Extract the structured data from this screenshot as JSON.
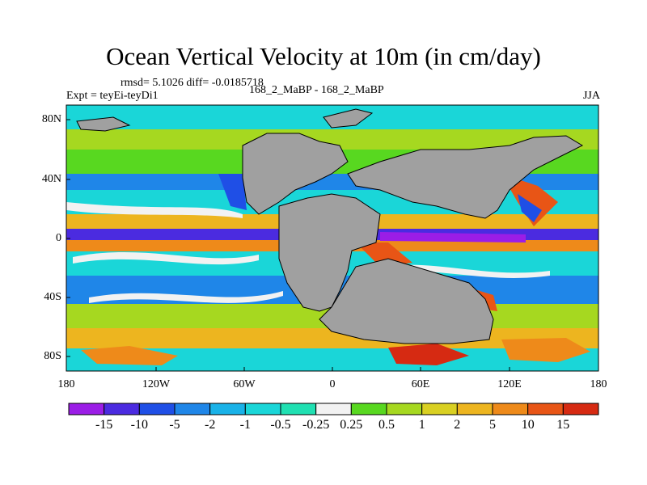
{
  "title": "Ocean Vertical Velocity at 10m (in cm/day)",
  "stats": "rmsd= 5.1026 diff= -0.0185718",
  "expt": "Expt = teyEi-teyDi1",
  "center_label": "168_2_MaBP - 168_2_MaBP",
  "season": "JJA",
  "lat_ticks": [
    "80N",
    "40N",
    "0",
    "40S",
    "80S"
  ],
  "lon_ticks": [
    "180",
    "120W",
    "60W",
    "0",
    "60E",
    "120E",
    "180"
  ],
  "colorbar": {
    "labels": [
      "-15",
      "-10",
      "-5",
      "-2",
      "-1",
      "-0.5",
      "-0.25",
      "0.25",
      "0.5",
      "1",
      "2",
      "5",
      "10",
      "15"
    ],
    "colors": [
      "#9b1de6",
      "#4b2be0",
      "#1f4fe6",
      "#1f86e8",
      "#19b2e8",
      "#1ad6d8",
      "#20e0b2",
      "#f2f2f2",
      "#58d820",
      "#a6d820",
      "#d9d022",
      "#edb51f",
      "#ee8a1a",
      "#e85516",
      "#d62a12"
    ]
  },
  "land_color": "#a0a0a0"
}
